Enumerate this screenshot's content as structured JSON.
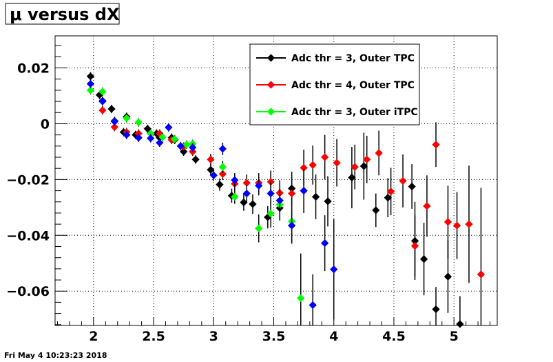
{
  "chart_data": {
    "type": "scatter",
    "title": "μ versus dX",
    "xlabel": "",
    "ylabel": "",
    "xlim": [
      1.68,
      5.36
    ],
    "ylim": [
      -0.0723,
      0.0315
    ],
    "x_ticks": [
      {
        "value": 2,
        "label": "2"
      },
      {
        "value": 2.5,
        "label": "2.5"
      },
      {
        "value": 3,
        "label": "3"
      },
      {
        "value": 3.5,
        "label": "3.5"
      },
      {
        "value": 4,
        "label": "4"
      },
      {
        "value": 4.5,
        "label": "4.5"
      },
      {
        "value": 5,
        "label": "5"
      }
    ],
    "y_ticks": [
      {
        "value": 0.02,
        "label": "0.02"
      },
      {
        "value": 0,
        "label": "0"
      },
      {
        "value": -0.02,
        "label": "−0.02"
      },
      {
        "value": -0.04,
        "label": "−0.04"
      },
      {
        "value": -0.06,
        "label": "−0.06"
      }
    ],
    "grid": true,
    "legend_position": "top-right",
    "bin_half_width": 0.025,
    "series": [
      {
        "name": "Adc thr = 3, Outer TPC",
        "color": "#000000",
        "points": [
          {
            "x": 1.975,
            "y": 0.017,
            "err": 0.0015
          },
          {
            "x": 2.05,
            "y": 0.0103,
            "err": 0.0015
          },
          {
            "x": 2.075,
            "y": 0.0082,
            "err": 0.0015
          },
          {
            "x": 2.15,
            "y": 0.0053,
            "err": 0.0015
          },
          {
            "x": 2.175,
            "y": 0.001,
            "err": 0.0015
          },
          {
            "x": 2.25,
            "y": -0.003,
            "err": 0.0015
          },
          {
            "x": 2.275,
            "y": 0.0025,
            "err": 0.0015
          },
          {
            "x": 2.35,
            "y": -0.004,
            "err": 0.0015
          },
          {
            "x": 2.45,
            "y": -0.0018,
            "err": 0.0015
          },
          {
            "x": 2.525,
            "y": -0.0035,
            "err": 0.0015
          },
          {
            "x": 2.55,
            "y": -0.005,
            "err": 0.0015
          },
          {
            "x": 2.65,
            "y": -0.005,
            "err": 0.0015
          },
          {
            "x": 2.675,
            "y": -0.0058,
            "err": 0.0015
          },
          {
            "x": 2.75,
            "y": -0.01,
            "err": 0.0015
          },
          {
            "x": 2.85,
            "y": -0.0128,
            "err": 0.0015
          },
          {
            "x": 2.975,
            "y": -0.0165,
            "err": 0.002
          },
          {
            "x": 3.05,
            "y": -0.0218,
            "err": 0.0022
          },
          {
            "x": 3.15,
            "y": -0.0258,
            "err": 0.0025
          },
          {
            "x": 3.25,
            "y": -0.0282,
            "err": 0.003
          },
          {
            "x": 3.325,
            "y": -0.0288,
            "err": 0.0035
          },
          {
            "x": 3.45,
            "y": -0.0335,
            "err": 0.004
          },
          {
            "x": 3.55,
            "y": -0.0302,
            "err": 0.0045
          },
          {
            "x": 3.65,
            "y": -0.0232,
            "err": 0.006
          },
          {
            "x": 3.85,
            "y": -0.0262,
            "err": 0.008
          },
          {
            "x": 3.95,
            "y": -0.0278,
            "err": 0.009
          },
          {
            "x": 4.15,
            "y": -0.0193,
            "err": 0.011
          },
          {
            "x": 4.25,
            "y": -0.0152,
            "err": 0.012
          },
          {
            "x": 4.35,
            "y": -0.031,
            "err": 0.006
          },
          {
            "x": 4.45,
            "y": -0.0265,
            "err": 0.007
          },
          {
            "x": 4.65,
            "y": -0.0225,
            "err": 0.008
          },
          {
            "x": 4.675,
            "y": -0.042,
            "err": 0.014
          },
          {
            "x": 4.75,
            "y": -0.0485,
            "err": 0.013
          },
          {
            "x": 4.85,
            "y": -0.0665,
            "err": 0.008
          },
          {
            "x": 4.95,
            "y": -0.0548,
            "err": 0.013
          },
          {
            "x": 5.05,
            "y": -0.0718,
            "err": 0.01
          }
        ]
      },
      {
        "name": "Adc thr = 4, Outer TPC",
        "color": "#ff0000",
        "points": [
          {
            "x": 2.075,
            "y": 0.0048,
            "err": 0.0015
          },
          {
            "x": 2.175,
            "y": -0.0012,
            "err": 0.0015
          },
          {
            "x": 2.275,
            "y": -0.003,
            "err": 0.0015
          },
          {
            "x": 2.375,
            "y": -0.0035,
            "err": 0.0015
          },
          {
            "x": 2.475,
            "y": -0.0035,
            "err": 0.0015
          },
          {
            "x": 2.55,
            "y": -0.0035,
            "err": 0.0015
          },
          {
            "x": 2.65,
            "y": -0.0058,
            "err": 0.0015
          },
          {
            "x": 2.75,
            "y": -0.0082,
            "err": 0.0015
          },
          {
            "x": 2.825,
            "y": -0.01,
            "err": 0.0015
          },
          {
            "x": 2.975,
            "y": -0.0128,
            "err": 0.002
          },
          {
            "x": 3.075,
            "y": -0.018,
            "err": 0.0022
          },
          {
            "x": 3.175,
            "y": -0.0215,
            "err": 0.0025
          },
          {
            "x": 3.275,
            "y": -0.0212,
            "err": 0.003
          },
          {
            "x": 3.375,
            "y": -0.0212,
            "err": 0.0035
          },
          {
            "x": 3.475,
            "y": -0.0208,
            "err": 0.004
          },
          {
            "x": 3.55,
            "y": -0.0248,
            "err": 0.0045
          },
          {
            "x": 3.65,
            "y": -0.025,
            "err": 0.005
          },
          {
            "x": 3.75,
            "y": -0.0158,
            "err": 0.0065
          },
          {
            "x": 3.825,
            "y": -0.0148,
            "err": 0.007
          },
          {
            "x": 3.925,
            "y": -0.012,
            "err": 0.008
          },
          {
            "x": 4.025,
            "y": -0.014,
            "err": 0.0085
          },
          {
            "x": 4.175,
            "y": -0.0155,
            "err": 0.008
          },
          {
            "x": 4.275,
            "y": -0.0128,
            "err": 0.0085
          },
          {
            "x": 4.375,
            "y": -0.0105,
            "err": 0.008
          },
          {
            "x": 4.475,
            "y": -0.0243,
            "err": 0.0085
          },
          {
            "x": 4.575,
            "y": -0.0205,
            "err": 0.0095
          },
          {
            "x": 4.675,
            "y": -0.0438,
            "err": 0.011
          },
          {
            "x": 4.775,
            "y": -0.0295,
            "err": 0.011
          },
          {
            "x": 4.85,
            "y": -0.0075,
            "err": 0.008
          },
          {
            "x": 4.95,
            "y": -0.0352,
            "err": 0.013
          },
          {
            "x": 5.025,
            "y": -0.0365,
            "err": 0.012
          },
          {
            "x": 5.125,
            "y": -0.036,
            "err": 0.021
          },
          {
            "x": 5.225,
            "y": -0.054,
            "err": 0.031
          }
        ]
      },
      {
        "name": "Adc thr = 3, Outer iTPC",
        "color": "#00ff00",
        "points": [
          {
            "x": 1.975,
            "y": 0.012,
            "err": 0.0015
          },
          {
            "x": 2.075,
            "y": 0.0115,
            "err": 0.0015
          },
          {
            "x": 2.175,
            "y": 0.0008,
            "err": 0.0015
          },
          {
            "x": 2.275,
            "y": 0.002,
            "err": 0.0015
          },
          {
            "x": 2.375,
            "y": 0.0005,
            "err": 0.0015
          },
          {
            "x": 2.475,
            "y": -0.0035,
            "err": 0.0015
          },
          {
            "x": 2.575,
            "y": -0.0048,
            "err": 0.0015
          },
          {
            "x": 2.675,
            "y": -0.0055,
            "err": 0.0015
          },
          {
            "x": 2.775,
            "y": -0.0075,
            "err": 0.0015
          },
          {
            "x": 2.825,
            "y": -0.0072,
            "err": 0.0015
          },
          {
            "x": 3.075,
            "y": -0.0155,
            "err": 0.0022
          },
          {
            "x": 3.175,
            "y": -0.0262,
            "err": 0.0025
          },
          {
            "x": 3.375,
            "y": -0.0375,
            "err": 0.005
          },
          {
            "x": 3.475,
            "y": -0.0322,
            "err": 0.005
          },
          {
            "x": 3.55,
            "y": -0.029,
            "err": 0.0055
          },
          {
            "x": 3.65,
            "y": -0.035,
            "err": 0.008
          },
          {
            "x": 3.725,
            "y": -0.0625,
            "err": 0.016
          }
        ]
      },
      {
        "name": "",
        "color": "#0000ff",
        "points": [
          {
            "x": 1.975,
            "y": 0.0143,
            "err": 0.0015
          },
          {
            "x": 2.075,
            "y": 0.008,
            "err": 0.0015
          },
          {
            "x": 2.175,
            "y": 0.0008,
            "err": 0.0015
          },
          {
            "x": 2.275,
            "y": -0.004,
            "err": 0.0015
          },
          {
            "x": 2.375,
            "y": -0.005,
            "err": 0.0015
          },
          {
            "x": 2.475,
            "y": -0.0052,
            "err": 0.0015
          },
          {
            "x": 2.55,
            "y": -0.0068,
            "err": 0.0015
          },
          {
            "x": 2.625,
            "y": -0.0013,
            "err": 0.0015
          },
          {
            "x": 2.725,
            "y": -0.008,
            "err": 0.0015
          },
          {
            "x": 2.825,
            "y": -0.0085,
            "err": 0.0015
          },
          {
            "x": 3.0,
            "y": -0.0185,
            "err": 0.002
          },
          {
            "x": 3.075,
            "y": -0.009,
            "err": 0.0022
          },
          {
            "x": 3.175,
            "y": -0.0202,
            "err": 0.0025
          },
          {
            "x": 3.275,
            "y": -0.025,
            "err": 0.003
          },
          {
            "x": 3.375,
            "y": -0.0222,
            "err": 0.0035
          },
          {
            "x": 3.475,
            "y": -0.025,
            "err": 0.004
          },
          {
            "x": 3.55,
            "y": -0.0275,
            "err": 0.0045
          },
          {
            "x": 3.65,
            "y": -0.0365,
            "err": 0.006
          },
          {
            "x": 3.75,
            "y": -0.024,
            "err": 0.008
          },
          {
            "x": 3.825,
            "y": -0.065,
            "err": 0.011
          },
          {
            "x": 3.925,
            "y": -0.0428,
            "err": 0.01
          },
          {
            "x": 4.0,
            "y": -0.0522,
            "err": 0.018
          }
        ]
      }
    ]
  },
  "footer": {
    "timestamp": "Fri May  4 10:23:23 2018"
  }
}
